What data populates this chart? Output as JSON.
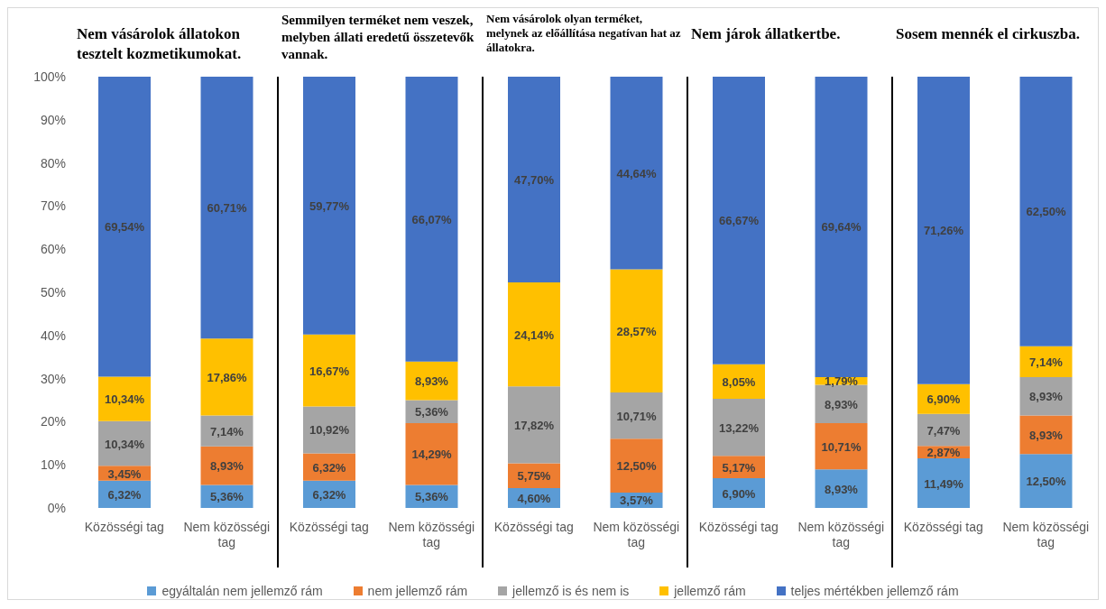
{
  "chart_data": [
    {
      "type": "bar",
      "stacked": true,
      "title": "Nem vásárolok állatokon tesztelt kozmetikumokat.",
      "categories": [
        "Közösségi tag",
        "Nem közösségi tag"
      ],
      "ylim": [
        0,
        100
      ],
      "yticks": [
        {
          "value": 0,
          "label": "0%"
        },
        {
          "value": 10,
          "label": "10%"
        },
        {
          "value": 20,
          "label": "20%"
        },
        {
          "value": 30,
          "label": "30%"
        },
        {
          "value": 40,
          "label": "40%"
        },
        {
          "value": 50,
          "label": "50%"
        },
        {
          "value": 60,
          "label": "60%"
        },
        {
          "value": 70,
          "label": "70%"
        },
        {
          "value": 80,
          "label": "80%"
        },
        {
          "value": 90,
          "label": "90%"
        },
        {
          "value": 100,
          "label": "100%"
        }
      ],
      "grid": false,
      "legend": "bottom",
      "series": [
        {
          "name": "egyáltalán nem jellemző rám",
          "color": "#5b9bd5",
          "values": [
            6.32,
            5.36
          ],
          "value_labels": [
            "6,32%",
            "5,36%"
          ]
        },
        {
          "name": "nem jellemző rám",
          "color": "#ed7d31",
          "values": [
            3.45,
            8.93
          ],
          "value_labels": [
            "3,45%",
            "8,93%"
          ]
        },
        {
          "name": "jellemző is és nem is",
          "color": "#a5a5a5",
          "values": [
            10.34,
            7.14
          ],
          "value_labels": [
            "10,34%",
            "7,14%"
          ]
        },
        {
          "name": "jellemző rám",
          "color": "#ffc000",
          "values": [
            10.34,
            17.86
          ],
          "value_labels": [
            "10,34%",
            "17,86%"
          ]
        },
        {
          "name": "teljes mértékben jellemző rám",
          "color": "#4472c4",
          "values": [
            69.54,
            60.71
          ],
          "value_labels": [
            "69,54%",
            "60,71%"
          ]
        }
      ]
    },
    {
      "type": "bar",
      "stacked": true,
      "title": "Semmilyen terméket nem veszek, melyben állati eredetű összetevők vannak.",
      "categories": [
        "Közösségi tag",
        "Nem közösségi tag"
      ],
      "ylim": [
        0,
        100
      ],
      "tick_labels": "x",
      "grid": false,
      "series": [
        {
          "name": "egyáltalán nem jellemző rám",
          "color": "#5b9bd5",
          "values": [
            6.32,
            5.36
          ],
          "value_labels": [
            "6,32%",
            "5,36%"
          ]
        },
        {
          "name": "nem jellemző rám",
          "color": "#ed7d31",
          "values": [
            6.32,
            14.29
          ],
          "value_labels": [
            "6,32%",
            "14,29%"
          ]
        },
        {
          "name": "jellemző is és nem is",
          "color": "#a5a5a5",
          "values": [
            10.92,
            5.36
          ],
          "value_labels": [
            "10,92%",
            "5,36%"
          ]
        },
        {
          "name": "jellemző rám",
          "color": "#ffc000",
          "values": [
            16.67,
            8.93
          ],
          "value_labels": [
            "16,67%",
            "8,93%"
          ]
        },
        {
          "name": "teljes mértékben jellemző rám",
          "color": "#4472c4",
          "values": [
            59.77,
            66.07
          ],
          "value_labels": [
            "59,77%",
            "66,07%"
          ]
        }
      ]
    },
    {
      "type": "bar",
      "stacked": true,
      "title": "Nem vásárolok olyan terméket, melynek az előállítása negatívan hat az állatokra.",
      "categories": [
        "Közösségi tag",
        "Nem közösségi tag"
      ],
      "ylim": [
        0,
        100
      ],
      "tick_labels": "x",
      "grid": false,
      "series": [
        {
          "name": "egyáltalán nem jellemző rám",
          "color": "#5b9bd5",
          "values": [
            4.6,
            3.57
          ],
          "value_labels": [
            "4,60%",
            "3,57%"
          ]
        },
        {
          "name": "nem jellemző rám",
          "color": "#ed7d31",
          "values": [
            5.75,
            12.5
          ],
          "value_labels": [
            "5,75%",
            "12,50%"
          ]
        },
        {
          "name": "jellemző is és nem is",
          "color": "#a5a5a5",
          "values": [
            17.82,
            10.71
          ],
          "value_labels": [
            "17,82%",
            "10,71%"
          ]
        },
        {
          "name": "jellemző rám",
          "color": "#ffc000",
          "values": [
            24.14,
            28.57
          ],
          "value_labels": [
            "24,14%",
            "28,57%"
          ]
        },
        {
          "name": "teljes mértékben jellemző rám",
          "color": "#4472c4",
          "values": [
            47.7,
            44.64
          ],
          "value_labels": [
            "47,70%",
            "44,64%"
          ]
        }
      ]
    },
    {
      "type": "bar",
      "stacked": true,
      "title": "Nem járok állatkertbe.",
      "categories": [
        "Közösségi tag",
        "Nem közösségi tag"
      ],
      "ylim": [
        0,
        100
      ],
      "tick_labels": "x",
      "grid": false,
      "series": [
        {
          "name": "egyáltalán nem jellemző rám",
          "color": "#5b9bd5",
          "values": [
            6.9,
            8.93
          ],
          "value_labels": [
            "6,90%",
            "8,93%"
          ]
        },
        {
          "name": "nem jellemző rám",
          "color": "#ed7d31",
          "values": [
            5.17,
            10.71
          ],
          "value_labels": [
            "5,17%",
            "10,71%"
          ]
        },
        {
          "name": "jellemző is és nem is",
          "color": "#a5a5a5",
          "values": [
            13.22,
            8.93
          ],
          "value_labels": [
            "13,22%",
            "8,93%"
          ]
        },
        {
          "name": "jellemző rám",
          "color": "#ffc000",
          "values": [
            8.05,
            1.79
          ],
          "value_labels": [
            "8,05%",
            "1,79%"
          ]
        },
        {
          "name": "teljes mértékben jellemző rám",
          "color": "#4472c4",
          "values": [
            66.67,
            69.64
          ],
          "value_labels": [
            "66,67%",
            "69,64%"
          ]
        }
      ]
    },
    {
      "type": "bar",
      "stacked": true,
      "title": "Sosem mennék el cirkuszba.",
      "categories": [
        "Közösségi tag",
        "Nem közösségi tag"
      ],
      "ylim": [
        0,
        100
      ],
      "tick_labels": "x",
      "grid": false,
      "series": [
        {
          "name": "egyáltalán nem jellemző rám",
          "color": "#5b9bd5",
          "values": [
            11.49,
            12.5
          ],
          "value_labels": [
            "11,49%",
            "12,50%"
          ]
        },
        {
          "name": "nem jellemző rám",
          "color": "#ed7d31",
          "values": [
            2.87,
            8.93
          ],
          "value_labels": [
            "2,87%",
            "8,93%"
          ]
        },
        {
          "name": "jellemző is és nem is",
          "color": "#a5a5a5",
          "values": [
            7.47,
            8.93
          ],
          "value_labels": [
            "7,47%",
            "8,93%"
          ]
        },
        {
          "name": "jellemző rám",
          "color": "#ffc000",
          "values": [
            6.9,
            7.14
          ],
          "value_labels": [
            "6,90%",
            "7,14%"
          ]
        },
        {
          "name": "teljes mértékben jellemző rám",
          "color": "#4472c4",
          "values": [
            71.26,
            62.5
          ],
          "value_labels": [
            "71,26%",
            "62,50%"
          ]
        }
      ]
    }
  ]
}
